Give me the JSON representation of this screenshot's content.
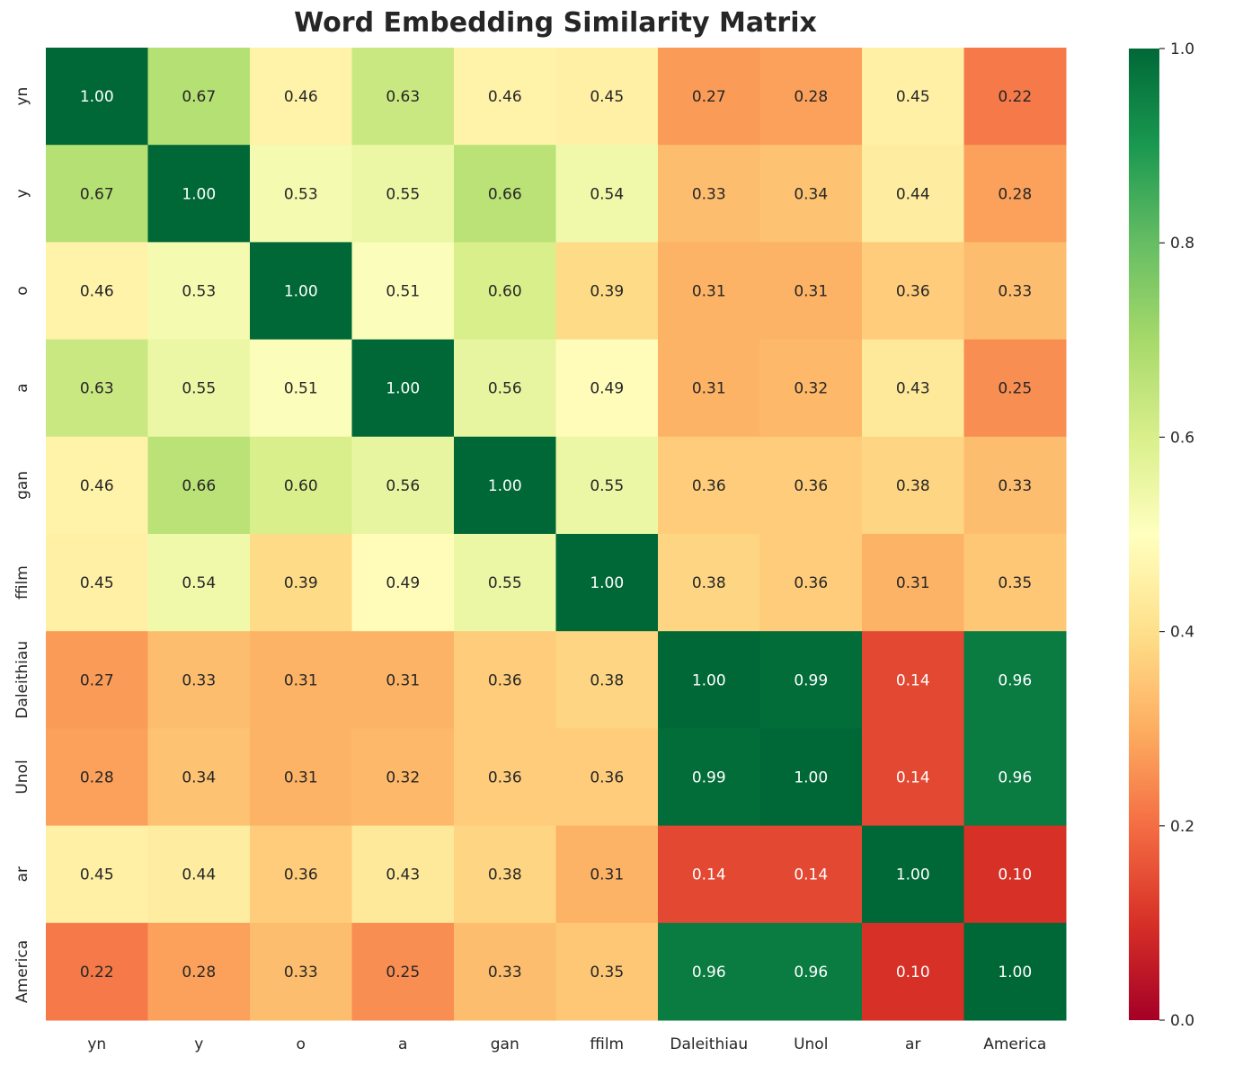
{
  "chart_data": {
    "type": "heatmap",
    "title": "Word Embedding Similarity Matrix",
    "xlabel": "",
    "ylabel": "",
    "colormap": "RdYlGn",
    "vmin": 0.0,
    "vmax": 1.0,
    "x_labels": [
      "yn",
      "y",
      "o",
      "a",
      "gan",
      "ffilm",
      "Daleithiau",
      "Unol",
      "ar",
      "America"
    ],
    "y_labels": [
      "yn",
      "y",
      "o",
      "a",
      "gan",
      "ffilm",
      "Daleithiau",
      "Unol",
      "ar",
      "America"
    ],
    "values": [
      [
        1.0,
        0.67,
        0.46,
        0.63,
        0.46,
        0.45,
        0.27,
        0.28,
        0.45,
        0.22
      ],
      [
        0.67,
        1.0,
        0.53,
        0.55,
        0.66,
        0.54,
        0.33,
        0.34,
        0.44,
        0.28
      ],
      [
        0.46,
        0.53,
        1.0,
        0.51,
        0.6,
        0.39,
        0.31,
        0.31,
        0.36,
        0.33
      ],
      [
        0.63,
        0.55,
        0.51,
        1.0,
        0.56,
        0.49,
        0.31,
        0.32,
        0.43,
        0.25
      ],
      [
        0.46,
        0.66,
        0.6,
        0.56,
        1.0,
        0.55,
        0.36,
        0.36,
        0.38,
        0.33
      ],
      [
        0.45,
        0.54,
        0.39,
        0.49,
        0.55,
        1.0,
        0.38,
        0.36,
        0.31,
        0.35
      ],
      [
        0.27,
        0.33,
        0.31,
        0.31,
        0.36,
        0.38,
        1.0,
        0.99,
        0.14,
        0.96
      ],
      [
        0.28,
        0.34,
        0.31,
        0.32,
        0.36,
        0.36,
        0.99,
        1.0,
        0.14,
        0.96
      ],
      [
        0.45,
        0.44,
        0.36,
        0.43,
        0.38,
        0.31,
        0.14,
        0.14,
        1.0,
        0.1
      ],
      [
        0.22,
        0.28,
        0.33,
        0.25,
        0.33,
        0.35,
        0.96,
        0.96,
        0.1,
        1.0
      ]
    ],
    "colorbar_ticks": [
      "0.0",
      "0.2",
      "0.4",
      "0.6",
      "0.8",
      "1.0"
    ],
    "annotation_format": "0.00"
  }
}
